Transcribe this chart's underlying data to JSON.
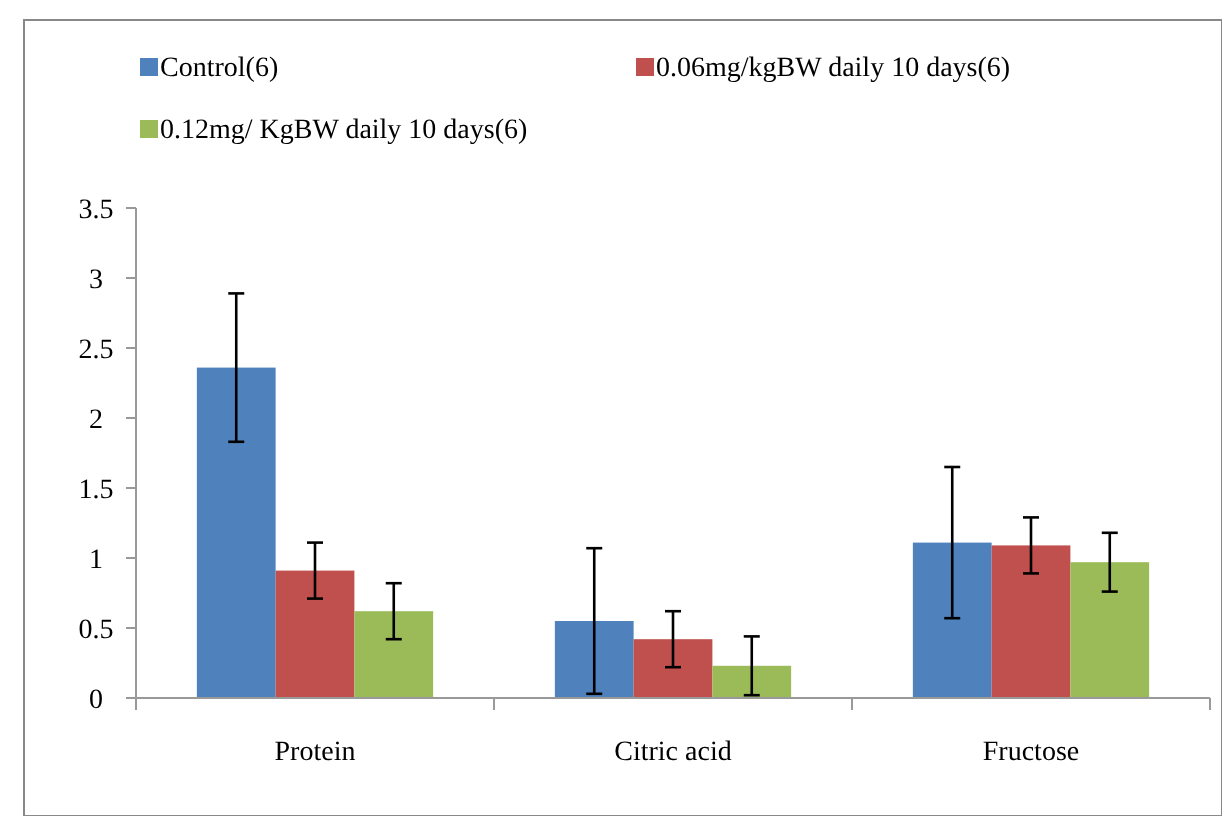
{
  "chart_data": {
    "type": "bar",
    "categories": [
      "Protein",
      "Citric acid",
      "Fructose"
    ],
    "series": [
      {
        "name": "Control(6)",
        "color": "#4f81bd",
        "values": [
          2.36,
          0.55,
          1.11
        ],
        "errors": [
          0.53,
          0.52,
          0.54
        ]
      },
      {
        "name": "0.06mg/kgBW daily 10 days(6)",
        "color": "#c0504d",
        "values": [
          0.91,
          0.42,
          1.09
        ],
        "errors": [
          0.2,
          0.2,
          0.2
        ]
      },
      {
        "name": "0.12mg/ KgBW daily 10 days(6)",
        "color": "#9bbb59",
        "values": [
          0.62,
          0.23,
          0.97
        ],
        "errors": [
          0.2,
          0.21,
          0.21
        ]
      }
    ],
    "ylim": [
      0,
      3.5
    ],
    "yticks": [
      0,
      0.5,
      1,
      1.5,
      2,
      2.5,
      3,
      3.5
    ],
    "legend": "top",
    "grid": false
  }
}
